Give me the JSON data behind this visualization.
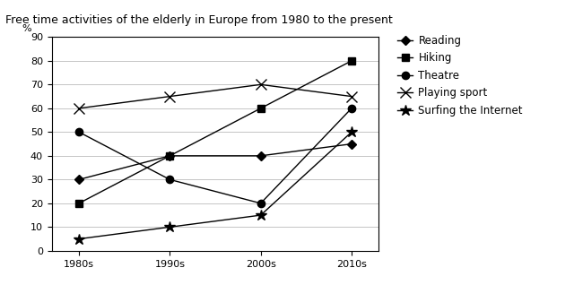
{
  "title": "Free time activities of the elderly in Europe from 1980 to the present",
  "ylabel": "%",
  "x_labels": [
    "1980s",
    "1990s",
    "2000s",
    "2010s"
  ],
  "x_values": [
    0,
    1,
    2,
    3
  ],
  "ylim": [
    0,
    90
  ],
  "yticks": [
    0,
    10,
    20,
    30,
    40,
    50,
    60,
    70,
    80,
    90
  ],
  "series": {
    "Reading": [
      30,
      40,
      40,
      45
    ],
    "Hiking": [
      20,
      40,
      60,
      80
    ],
    "Theatre": [
      50,
      30,
      20,
      60
    ],
    "Playing sport": [
      60,
      65,
      70,
      65
    ],
    "Surfing the Internet": [
      5,
      10,
      15,
      50
    ]
  },
  "markers": {
    "Reading": "D",
    "Hiking": "s",
    "Theatre": "o",
    "Playing sport": "x",
    "Surfing the Internet": "*"
  },
  "marker_sizes": {
    "Reading": 5,
    "Hiking": 6,
    "Theatre": 6,
    "Playing sport": 8,
    "Surfing the Internet": 9
  },
  "line_color": "#000000",
  "background_color": "#ffffff",
  "grid_color": "#bbbbbb",
  "title_fontsize": 9,
  "axis_fontsize": 8,
  "legend_fontsize": 8.5
}
